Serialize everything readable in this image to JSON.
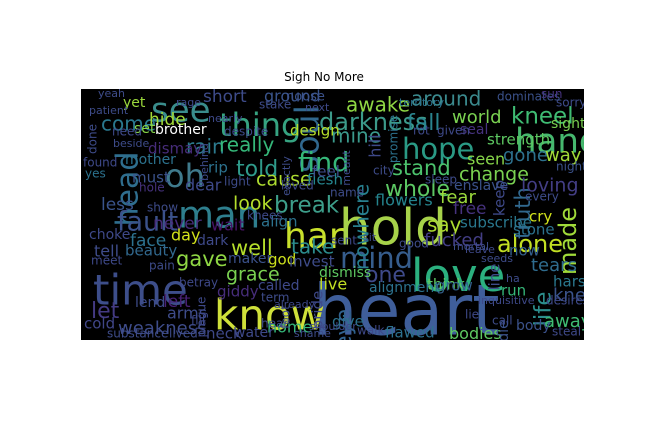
{
  "chart_data": {
    "type": "wordcloud",
    "title": "Sigh No More",
    "background": "#000000",
    "words": [
      {
        "text": "heart",
        "weight": 1.0,
        "color": "#3f5e9a"
      },
      {
        "text": "hold",
        "weight": 0.7,
        "color": "#a7d24a"
      },
      {
        "text": "love",
        "weight": 0.62,
        "color": "#2bb07f"
      },
      {
        "text": "know",
        "weight": 0.58,
        "color": "#cfe03a"
      },
      {
        "text": "time",
        "weight": 0.58,
        "color": "#3d4e8a"
      },
      {
        "text": "man",
        "weight": 0.5,
        "color": "#2e7f8e"
      },
      {
        "text": "har",
        "weight": 0.48,
        "color": "#c8e02c"
      },
      {
        "text": "see",
        "weight": 0.45,
        "color": "#3a8d8c"
      },
      {
        "text": "hand",
        "weight": 0.45,
        "color": "#46b86e"
      },
      {
        "text": "soul",
        "weight": 0.44,
        "color": "#31688e"
      },
      {
        "text": "thing",
        "weight": 0.42,
        "color": "#36a381"
      },
      {
        "text": "oh",
        "weight": 0.42,
        "color": "#3f7a8c"
      },
      {
        "text": "head",
        "weight": 0.4,
        "color": "#2f6e8e"
      },
      {
        "text": "mind",
        "weight": 0.38,
        "color": "#365d8d"
      },
      {
        "text": "hope",
        "weight": 0.37,
        "color": "#2a9a85"
      },
      {
        "text": "fault",
        "weight": 0.35,
        "color": "#3b528b"
      },
      {
        "text": "find",
        "weight": 0.34,
        "color": "#35b779"
      },
      {
        "text": "darkness",
        "weight": 0.3,
        "color": "#3c9a8a"
      },
      {
        "text": "made",
        "weight": 0.3,
        "color": "#a0da39"
      },
      {
        "text": "alone",
        "weight": 0.3,
        "color": "#c2df23"
      },
      {
        "text": "life",
        "weight": 0.29,
        "color": "#2c8d8c"
      },
      {
        "text": "break",
        "weight": 0.28,
        "color": "#3d9e8a"
      },
      {
        "text": "kneel",
        "weight": 0.28,
        "color": "#3fbc73"
      },
      {
        "text": "one",
        "weight": 0.27,
        "color": "#3f4a8a"
      },
      {
        "text": "told",
        "weight": 0.27,
        "color": "#2f9a8a"
      },
      {
        "text": "eye",
        "weight": 0.27,
        "color": "#31628e"
      },
      {
        "text": "fall",
        "weight": 0.27,
        "color": "#2a848e"
      },
      {
        "text": "whole",
        "weight": 0.27,
        "color": "#5cc863"
      },
      {
        "text": "let",
        "weight": 0.27,
        "color": "#443a83"
      },
      {
        "text": "truth",
        "weight": 0.25,
        "color": "#31688e"
      },
      {
        "text": "stand",
        "weight": 0.25,
        "color": "#4cc26c"
      },
      {
        "text": "gave",
        "weight": 0.25,
        "color": "#8fd744"
      },
      {
        "text": "well",
        "weight": 0.25,
        "color": "#b5de2b"
      },
      {
        "text": "come",
        "weight": 0.24,
        "color": "#2a788e"
      },
      {
        "text": "say",
        "weight": 0.24,
        "color": "#addc30"
      },
      {
        "text": "nowhere",
        "weight": 0.24,
        "color": "#277f8e"
      },
      {
        "text": "awake",
        "weight": 0.24,
        "color": "#8fd744"
      },
      {
        "text": "mine",
        "weight": 0.24,
        "color": "#3b9a8c"
      },
      {
        "text": "take",
        "weight": 0.24,
        "color": "#2c8c8d"
      },
      {
        "text": "around",
        "weight": 0.23,
        "color": "#3b8a8e"
      },
      {
        "text": "rain",
        "weight": 0.23,
        "color": "#2c7a8e"
      },
      {
        "text": "really",
        "weight": 0.23,
        "color": "#35b779"
      },
      {
        "text": "look",
        "weight": 0.22,
        "color": "#b5de2b"
      },
      {
        "text": "cause",
        "weight": 0.22,
        "color": "#addc30"
      },
      {
        "text": "change",
        "weight": 0.22,
        "color": "#7ad151"
      },
      {
        "text": "loving",
        "weight": 0.22,
        "color": "#433e85"
      },
      {
        "text": "grace",
        "weight": 0.22,
        "color": "#7ad151"
      },
      {
        "text": "weakness",
        "weight": 0.21,
        "color": "#3e4c8a"
      },
      {
        "text": "tears",
        "weight": 0.21,
        "color": "#2f6c8e"
      },
      {
        "text": "knew",
        "weight": 0.21,
        "color": "#3a538b"
      },
      {
        "text": "away",
        "weight": 0.21,
        "color": "#3fbc73"
      },
      {
        "text": "world",
        "weight": 0.2,
        "color": "#7ad151"
      },
      {
        "text": "fear",
        "weight": 0.2,
        "color": "#9bd93c"
      },
      {
        "text": "fucked",
        "weight": 0.2,
        "color": "#433e85"
      },
      {
        "text": "gone",
        "weight": 0.2,
        "color": "#2d718e"
      },
      {
        "text": "way",
        "weight": 0.2,
        "color": "#a2da37"
      },
      {
        "text": "hide",
        "weight": 0.19,
        "color": "#a2da37"
      },
      {
        "text": "short",
        "weight": 0.19,
        "color": "#3e4c8a"
      },
      {
        "text": "less",
        "weight": 0.19,
        "color": "#3a548c"
      },
      {
        "text": "face",
        "weight": 0.19,
        "color": "#2d718e"
      },
      {
        "text": "left",
        "weight": 0.19,
        "color": "#482173"
      },
      {
        "text": "never",
        "weight": 0.19,
        "color": "#472c7a"
      },
      {
        "text": "free",
        "weight": 0.19,
        "color": "#46327e"
      },
      {
        "text": "ground",
        "weight": 0.17,
        "color": "#3a548c"
      },
      {
        "text": "dear",
        "weight": 0.17,
        "color": "#3e4989"
      },
      {
        "text": "live",
        "weight": 0.17,
        "color": "#c2df23"
      },
      {
        "text": "day",
        "weight": 0.17,
        "color": "#d2e21b"
      },
      {
        "text": "home",
        "weight": 0.17,
        "color": "#35b779"
      },
      {
        "text": "arms",
        "weight": 0.17,
        "color": "#3e4c8a"
      },
      {
        "text": "flowers",
        "weight": 0.17,
        "color": "#25848e"
      },
      {
        "text": "bodies",
        "weight": 0.17,
        "color": "#5ec962"
      },
      {
        "text": "seen",
        "weight": 0.17,
        "color": "#86d549"
      },
      {
        "text": "wait",
        "weight": 0.17,
        "color": "#481467"
      },
      {
        "text": "tell",
        "weight": 0.17,
        "color": "#3e4c8a"
      },
      {
        "text": "hill",
        "weight": 0.17,
        "color": "#3e4989"
      },
      {
        "text": "flesh",
        "weight": 0.16,
        "color": "#25858e"
      },
      {
        "text": "design",
        "weight": 0.16,
        "color": "#b5de2b"
      },
      {
        "text": "beauty",
        "weight": 0.16,
        "color": "#31688e"
      },
      {
        "text": "pride",
        "weight": 0.16,
        "color": "#3e4989"
      },
      {
        "text": "dismay",
        "weight": 0.16,
        "color": "#472c7a"
      },
      {
        "text": "subscribe",
        "weight": 0.16,
        "color": "#2a788e"
      },
      {
        "text": "must",
        "weight": 0.16,
        "color": "#3b528b"
      },
      {
        "text": "neck",
        "weight": 0.16,
        "color": "#3e4989"
      },
      {
        "text": "giddy",
        "weight": 0.16,
        "color": "#472d7b"
      },
      {
        "text": "think",
        "weight": 0.16,
        "color": "#5ec962"
      },
      {
        "text": "stone",
        "weight": 0.16,
        "color": "#2c728e"
      },
      {
        "text": "strength",
        "weight": 0.16,
        "color": "#5ec962"
      },
      {
        "text": "align",
        "weight": 0.16,
        "color": "#2c728e"
      },
      {
        "text": "flawed",
        "weight": 0.16,
        "color": "#2d708e"
      },
      {
        "text": "cold",
        "weight": 0.15,
        "color": "#404688"
      },
      {
        "text": "rip",
        "weight": 0.15,
        "color": "#2c728e"
      },
      {
        "text": "god",
        "weight": 0.15,
        "color": "#cde11d"
      },
      {
        "text": "give",
        "weight": 0.15,
        "color": "#2c728e"
      },
      {
        "text": "invest",
        "weight": 0.15,
        "color": "#3e4c8a"
      },
      {
        "text": "feel",
        "weight": 0.15,
        "color": "#3e4c8a"
      },
      {
        "text": "grow",
        "weight": 0.15,
        "color": "#34608d"
      },
      {
        "text": "line",
        "weight": 0.15,
        "color": "#3e4c8a"
      },
      {
        "text": "keep",
        "weight": 0.15,
        "color": "#3e4989"
      },
      {
        "text": "run",
        "weight": 0.15,
        "color": "#35b779"
      },
      {
        "text": "cry",
        "weight": 0.15,
        "color": "#d2e21b"
      },
      {
        "text": "now",
        "weight": 0.15,
        "color": "#34608d"
      },
      {
        "text": "harsh",
        "weight": 0.15,
        "color": "#2a788e"
      },
      {
        "text": "sight",
        "weight": 0.14,
        "color": "#7ad151"
      },
      {
        "text": "enslave",
        "weight": 0.14,
        "color": "#3b528b"
      },
      {
        "text": "dismiss",
        "weight": 0.14,
        "color": "#5ec962"
      },
      {
        "text": "alignment",
        "weight": 0.14,
        "color": "#2c728e"
      },
      {
        "text": "body",
        "weight": 0.14,
        "color": "#3b528b"
      },
      {
        "text": "choke",
        "weight": 0.14,
        "color": "#3e4989"
      },
      {
        "text": "lend",
        "weight": 0.14,
        "color": "#3e4c8a"
      },
      {
        "text": "water",
        "weight": 0.13,
        "color": "#3e4989"
      },
      {
        "text": "dark",
        "weight": 0.13,
        "color": "#3e4989"
      },
      {
        "text": "maker",
        "weight": 0.13,
        "color": "#3b528b"
      },
      {
        "text": "called",
        "weight": 0.13,
        "color": "#3e4989"
      },
      {
        "text": "die",
        "weight": 0.13,
        "color": "#3b528b"
      },
      {
        "text": "yet",
        "weight": 0.13,
        "color": "#9bd93c"
      },
      {
        "text": "brother",
        "weight": 0.13,
        "color": "#ffffff"
      },
      {
        "text": "mother",
        "weight": 0.13,
        "color": "#2c728e"
      },
      {
        "text": "seal",
        "weight": 0.13,
        "color": "#46327e"
      },
      {
        "text": "set",
        "weight": 0.13,
        "color": "#86d549"
      },
      {
        "text": "noose",
        "weight": 0.12,
        "color": "#3b528b"
      },
      {
        "text": "sorry",
        "weight": 0.11,
        "color": "#3e4c8a"
      },
      {
        "text": "dominates",
        "weight": 0.11,
        "color": "#3b528b"
      },
      {
        "text": "meet",
        "weight": 0.11,
        "color": "#3e4989"
      },
      {
        "text": "pain",
        "weight": 0.11,
        "color": "#3e4c8a"
      },
      {
        "text": "betray",
        "weight": 0.11,
        "color": "#3e4989"
      },
      {
        "text": "good",
        "weight": 0.11,
        "color": "#3e4c8a"
      },
      {
        "text": "loved",
        "weight": 0.11,
        "color": "#3e4989"
      },
      {
        "text": "name",
        "weight": 0.11,
        "color": "#3e4c8a"
      },
      {
        "text": "hole",
        "weight": 0.11,
        "color": "#46327e"
      },
      {
        "text": "light",
        "weight": 0.11,
        "color": "#3e4c8a"
      },
      {
        "text": "knees",
        "weight": 0.11,
        "color": "#3e4989"
      },
      {
        "text": "show",
        "weight": 0.11,
        "color": "#3e4c8a"
      },
      {
        "text": "lie",
        "weight": 0.11,
        "color": "#3e4989"
      },
      {
        "text": "night",
        "weight": 0.11,
        "color": "#3b528b"
      },
      {
        "text": "every",
        "weight": 0.11,
        "color": "#3e4c8a"
      },
      {
        "text": "found",
        "weight": 0.11,
        "color": "#3e4989"
      },
      {
        "text": "yes",
        "weight": 0.11,
        "color": "#2c728e"
      },
      {
        "text": "done",
        "weight": 0.11,
        "color": "#3e4c8a"
      },
      {
        "text": "need",
        "weight": 0.11,
        "color": "#3e4989"
      },
      {
        "text": "term",
        "weight": 0.11,
        "color": "#3e4c8a"
      },
      {
        "text": "hear",
        "weight": 0.11,
        "color": "#3e4c8a"
      },
      {
        "text": "sun",
        "weight": 0.11,
        "color": "#46327e"
      },
      {
        "text": "sent",
        "weight": 0.11,
        "color": "#3e4989"
      },
      {
        "text": "sleep",
        "weight": 0.1,
        "color": "#3e4c8a"
      },
      {
        "text": "rot",
        "weight": 0.1,
        "color": "#3e4989"
      },
      {
        "text": "given",
        "weight": 0.1,
        "color": "#3e4989"
      },
      {
        "text": "promise",
        "weight": 0.1,
        "color": "#2c728e"
      },
      {
        "text": "city",
        "weight": 0.1,
        "color": "#3e4c8a"
      },
      {
        "text": "despite",
        "weight": 0.1,
        "color": "#3e4989"
      },
      {
        "text": "stake",
        "weight": 0.1,
        "color": "#3e4c8a"
      },
      {
        "text": "plague",
        "weight": 0.1,
        "color": "#3e4989"
      },
      {
        "text": "foot",
        "weight": 0.1,
        "color": "#3e4c8a"
      },
      {
        "text": "fill",
        "weight": 0.1,
        "color": "#3e4989"
      },
      {
        "text": "lived",
        "weight": 0.1,
        "color": "#3e4c8a"
      },
      {
        "text": "walk",
        "weight": 0.1,
        "color": "#3e4989"
      },
      {
        "text": "call",
        "weight": 0.1,
        "color": "#3e4c8a"
      },
      {
        "text": "desires",
        "weight": 0.1,
        "color": "#3e4989"
      },
      {
        "text": "steal",
        "weight": 0.1,
        "color": "#3e4989"
      },
      {
        "text": "substance",
        "weight": 0.1,
        "color": "#3e4c8a"
      },
      {
        "text": "territory",
        "weight": 0.09,
        "color": "#2c728e"
      },
      {
        "text": "exactly",
        "weight": 0.09,
        "color": "#3e4c8a"
      },
      {
        "text": "sit",
        "weight": 0.09,
        "color": "#3e4989"
      },
      {
        "text": "ha",
        "weight": 0.09,
        "color": "#3e4c8a"
      },
      {
        "text": "next",
        "weight": 0.09,
        "color": "#3e4989"
      },
      {
        "text": "yeah",
        "weight": 0.09,
        "color": "#3e4c8a"
      },
      {
        "text": "already",
        "weight": 0.09,
        "color": "#3e4989"
      },
      {
        "text": "shame",
        "weight": 0.09,
        "color": "#3e4c8a"
      },
      {
        "text": "leave",
        "weight": 0.09,
        "color": "#3e4989"
      },
      {
        "text": "seeds",
        "weight": 0.09,
        "color": "#3e4c8a"
      },
      {
        "text": "shoulder",
        "weight": 0.08,
        "color": "#3e4989"
      },
      {
        "text": "patient",
        "weight": 0.08,
        "color": "#3e4c8a"
      },
      {
        "text": "meant",
        "weight": 0.08,
        "color": "#3e4989"
      },
      {
        "text": "behind",
        "weight": 0.08,
        "color": "#3e4c8a"
      },
      {
        "text": "nearly",
        "weight": 0.08,
        "color": "#3e4989"
      },
      {
        "text": "beside",
        "weight": 0.08,
        "color": "#3e4c8a"
      },
      {
        "text": "inquisitive",
        "weight": 0.08,
        "color": "#3e4989"
      },
      {
        "text": "mortal",
        "weight": 0.08,
        "color": "#3e4c8a"
      },
      {
        "text": "rage",
        "weight": 0.08,
        "color": "#3e4989"
      }
    ]
  }
}
